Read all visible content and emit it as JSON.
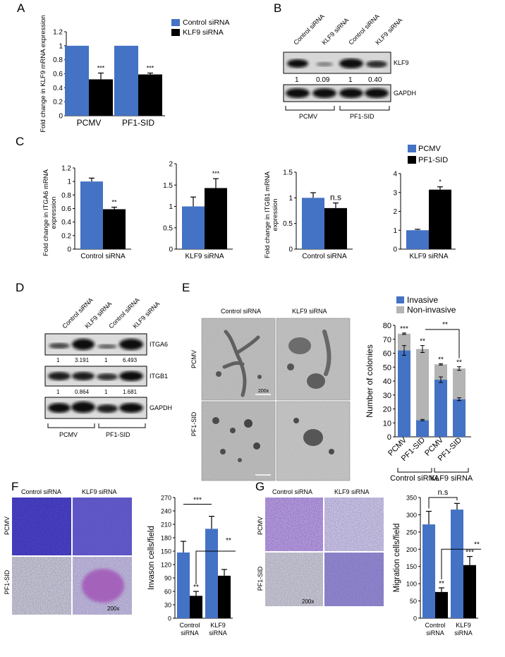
{
  "colors": {
    "blue": "#4472c4",
    "black": "#000000",
    "gray": "#b4b4b4",
    "blot_bg": "#d6d6d6",
    "micro_bg": "#b9b9b9",
    "stain_bg": "#7a6fc8"
  },
  "panels": {
    "A": "A",
    "B": "B",
    "C": "C",
    "D": "D",
    "E": "E",
    "F": "F",
    "G": "G"
  },
  "panelB": {
    "lanes": [
      "Control siRNA",
      "KLF9 siRNA",
      "Control siRNA",
      "KLF9 siRNA"
    ],
    "quant": [
      "1",
      "0.09",
      "1",
      "0.40"
    ],
    "klf9": "KLF9",
    "gapdh": "GAPDH",
    "groups": [
      "PCMV",
      "PF1-SID"
    ]
  },
  "panelD": {
    "lanes": [
      "Control siRNA",
      "KLF9 siRNA",
      "Control siRNA",
      "KLF9 siRNA"
    ],
    "itga6": "ITGA6",
    "itgb1": "ITGB1",
    "gapdh": "GAPDH",
    "itga6_quant": [
      "1",
      "3.191",
      "1",
      "6.493"
    ],
    "itgb1_quant": [
      "1",
      "0.864",
      "1",
      "1.681"
    ],
    "groups": [
      "PCMV",
      "PF1-SID"
    ]
  },
  "panelE_images": {
    "col1": "Control siRNA",
    "col2": "KLF9 siRNA",
    "row1": "PCMV",
    "row2": "PF1-SID",
    "scale": "200x"
  },
  "panelF_images": {
    "col1": "Control siRNA",
    "col2": "KLF9 siRNA",
    "row1": "PCMV",
    "row2": "PF1-SID",
    "scale": "200x"
  },
  "panelG_images": {
    "col1": "Control siRNA",
    "col2": "KLF9 siRNA",
    "row1": "PCMV",
    "row2": "PF1-SID",
    "scale": "200x"
  },
  "chart_data": [
    {
      "id": "A",
      "type": "bar",
      "categories": [
        "PCMV",
        "PF1-SID"
      ],
      "series": [
        {
          "name": "Control siRNA",
          "values": [
            1,
            1
          ],
          "errors": [
            0,
            0
          ]
        },
        {
          "name": "KLF9 siRNA",
          "values": [
            0.52,
            0.59
          ],
          "errors": [
            0.09,
            0.02
          ]
        }
      ],
      "ylabel": "Fold change in KLF9 mRNA expression",
      "ylim": [
        0,
        1.2
      ],
      "yticks": [
        0,
        0.2,
        0.4,
        0.6,
        0.8,
        1,
        1.2
      ],
      "ytick_labels": [
        "0",
        "0.2",
        "0.4",
        "0.6",
        "0.8",
        "1",
        "1.2"
      ],
      "annotations": [
        "***",
        "***"
      ],
      "legend": "top-right"
    },
    {
      "id": "C1",
      "type": "bar",
      "categories": [
        "Control siRNA"
      ],
      "series": [
        {
          "name": "PCMV",
          "values": [
            1.0
          ],
          "errors": [
            0.05
          ]
        },
        {
          "name": "PF1-SID",
          "values": [
            0.59
          ],
          "errors": [
            0.03
          ]
        }
      ],
      "ylabel": "Fold change in ITGA6 mRNA expression",
      "ylim": [
        0,
        1.2
      ],
      "yticks": [
        0,
        0.2,
        0.4,
        0.6,
        0.8,
        1,
        1.2
      ],
      "ytick_labels": [
        "0",
        "0.2",
        "0.4",
        "0.6",
        "0.8",
        "1",
        "1.2"
      ],
      "annotations": [
        "",
        "**"
      ]
    },
    {
      "id": "C2",
      "type": "bar",
      "categories": [
        "KLF9 siRNA"
      ],
      "series": [
        {
          "name": "PCMV",
          "values": [
            1.0
          ],
          "errors": [
            0.22
          ]
        },
        {
          "name": "PF1-SID",
          "values": [
            1.43
          ],
          "errors": [
            0.22
          ]
        }
      ],
      "ylabel": "",
      "ylim": [
        0,
        2
      ],
      "yticks": [
        0,
        0.5,
        1,
        1.5,
        2
      ],
      "ytick_labels": [
        "0",
        "0.5",
        "1",
        "1.5",
        "2"
      ],
      "annotations": [
        "",
        "***"
      ]
    },
    {
      "id": "C3",
      "type": "bar",
      "categories": [
        "Control siRNA"
      ],
      "series": [
        {
          "name": "PCMV",
          "values": [
            1.0
          ],
          "errors": [
            0.1
          ]
        },
        {
          "name": "PF1-SID",
          "values": [
            0.8
          ],
          "errors": [
            0.1
          ]
        }
      ],
      "ylabel": "Fold change in ITGB1 mRNA expression",
      "ylim": [
        0,
        1.5
      ],
      "yticks": [
        0,
        0.5,
        1,
        1.5
      ],
      "ytick_labels": [
        "0",
        "0.5",
        "1",
        "1.5"
      ],
      "annotations": [
        "",
        "n.s"
      ]
    },
    {
      "id": "C4",
      "type": "bar",
      "categories": [
        "KLF9 siRNA"
      ],
      "series": [
        {
          "name": "PCMV",
          "values": [
            1.0
          ],
          "errors": [
            0.05
          ]
        },
        {
          "name": "PF1-SID",
          "values": [
            3.15
          ],
          "errors": [
            0.15
          ]
        }
      ],
      "ylabel": "",
      "ylim": [
        0,
        4
      ],
      "yticks": [
        0,
        1,
        2,
        3,
        4
      ],
      "ytick_labels": [
        "0",
        "1",
        "2",
        "3",
        "4"
      ],
      "annotations": [
        "",
        "*"
      ],
      "legend": "top"
    },
    {
      "id": "E",
      "type": "bar",
      "stacked": true,
      "categories": [
        "PCMV",
        "PF1-SID",
        "PCMV",
        "PF1-SID"
      ],
      "groups": [
        "Control siRNA",
        "KLF9 siRNA"
      ],
      "series": [
        {
          "name": "Invasive",
          "values": [
            62,
            12,
            41,
            27
          ],
          "errors": [
            3.5,
            0.5,
            2,
            1
          ]
        },
        {
          "name": "Non-invasive",
          "values": [
            12,
            51,
            11,
            22
          ],
          "errors": [
            0.5,
            2.5,
            0.5,
            1.3
          ]
        }
      ],
      "ylabel": "Number of colonies",
      "ylim": [
        0,
        80
      ],
      "yticks": [
        0,
        10,
        20,
        30,
        40,
        50,
        60,
        70,
        80
      ],
      "ytick_labels": [
        "0",
        "10",
        "20",
        "30",
        "40",
        "50",
        "60",
        "70",
        "80"
      ],
      "annotations": [
        "***",
        "**",
        "**",
        "**",
        "**"
      ],
      "legend": "top"
    },
    {
      "id": "F",
      "type": "bar",
      "categories": [
        "Control siRNA",
        "KLF9 siRNA"
      ],
      "series": [
        {
          "name": "PCMV",
          "values": [
            147,
            200
          ],
          "errors": [
            25,
            28
          ]
        },
        {
          "name": "PF1-SID",
          "values": [
            50,
            95
          ],
          "errors": [
            10,
            14
          ]
        }
      ],
      "ylabel": "Invason cells/field",
      "ylim": [
        0,
        270
      ],
      "yticks": [
        0,
        30,
        60,
        90,
        120,
        150,
        180,
        210,
        240,
        270
      ],
      "ytick_labels": [
        "0",
        "30",
        "60",
        "90",
        "120",
        "150",
        "180",
        "210",
        "240",
        "270"
      ],
      "annotations": [
        "***",
        "**",
        "**"
      ]
    },
    {
      "id": "G",
      "type": "bar",
      "categories": [
        "Control siRNA",
        "KLF9 siRNA"
      ],
      "series": [
        {
          "name": "PCMV",
          "values": [
            272,
            315
          ],
          "errors": [
            38,
            18
          ]
        },
        {
          "name": "PF1-SID",
          "values": [
            76,
            154
          ],
          "errors": [
            12,
            25
          ]
        }
      ],
      "ylabel": "Migration cells/field",
      "ylim": [
        0,
        350
      ],
      "yticks": [
        0,
        50,
        100,
        150,
        200,
        250,
        300,
        350
      ],
      "ytick_labels": [
        "0",
        "50",
        "100",
        "150",
        "200",
        "250",
        "300",
        "350"
      ],
      "annotations": [
        "n.s",
        "**",
        "***",
        "**"
      ]
    }
  ]
}
